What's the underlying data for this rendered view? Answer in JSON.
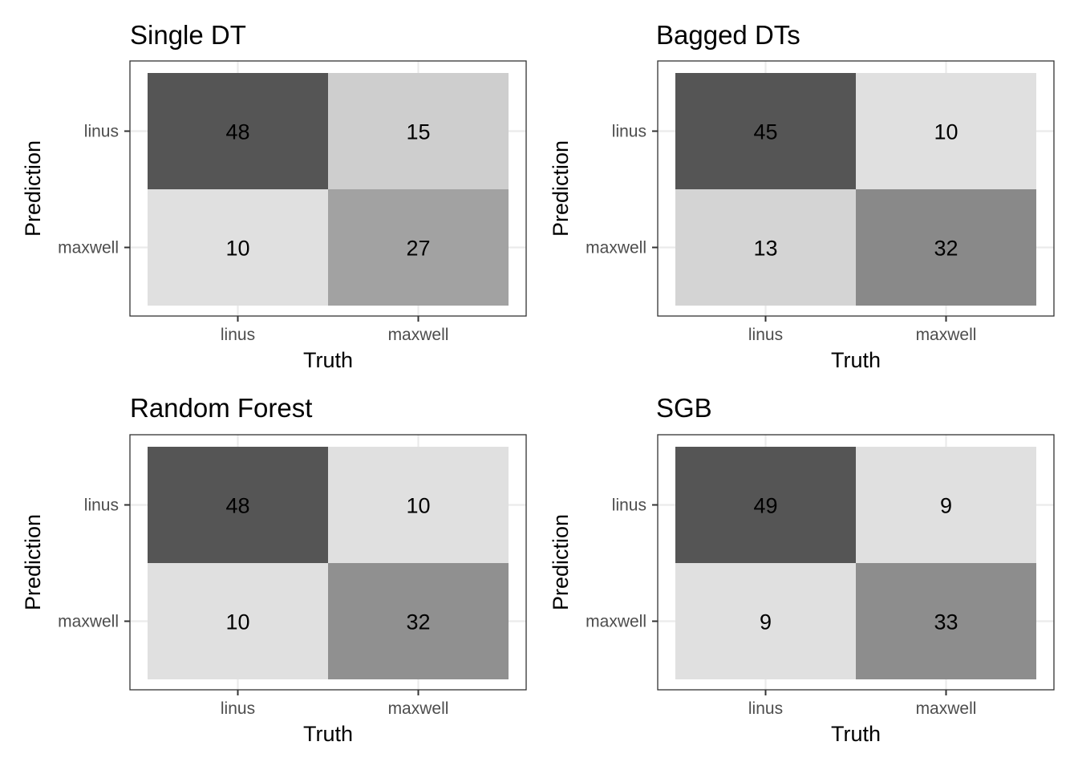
{
  "chart_data": [
    {
      "type": "heatmap",
      "title": "Single DT",
      "xlabel": "Truth",
      "ylabel": "Prediction",
      "x_categories": [
        "linus",
        "maxwell"
      ],
      "y_categories": [
        "linus",
        "maxwell"
      ],
      "values": [
        [
          48,
          15
        ],
        [
          10,
          27
        ]
      ],
      "grid": true,
      "legend": "none"
    },
    {
      "type": "heatmap",
      "title": "Bagged DTs",
      "xlabel": "Truth",
      "ylabel": "Prediction",
      "x_categories": [
        "linus",
        "maxwell"
      ],
      "y_categories": [
        "linus",
        "maxwell"
      ],
      "values": [
        [
          45,
          10
        ],
        [
          13,
          32
        ]
      ],
      "grid": true,
      "legend": "none"
    },
    {
      "type": "heatmap",
      "title": "Random Forest",
      "xlabel": "Truth",
      "ylabel": "Prediction",
      "x_categories": [
        "linus",
        "maxwell"
      ],
      "y_categories": [
        "linus",
        "maxwell"
      ],
      "values": [
        [
          48,
          10
        ],
        [
          10,
          32
        ]
      ],
      "grid": true,
      "legend": "none"
    },
    {
      "type": "heatmap",
      "title": "SGB",
      "xlabel": "Truth",
      "ylabel": "Prediction",
      "x_categories": [
        "linus",
        "maxwell"
      ],
      "y_categories": [
        "linus",
        "maxwell"
      ],
      "values": [
        [
          49,
          9
        ],
        [
          9,
          33
        ]
      ],
      "grid": true,
      "legend": "none"
    }
  ],
  "colors": {
    "fill_high": "#555555",
    "fill_low": "#e0e0e0",
    "grid": "#ebebeb",
    "panel_border": "#333333",
    "tick": "#333333",
    "tick_text": "#4d4d4d",
    "text": "#000000"
  }
}
